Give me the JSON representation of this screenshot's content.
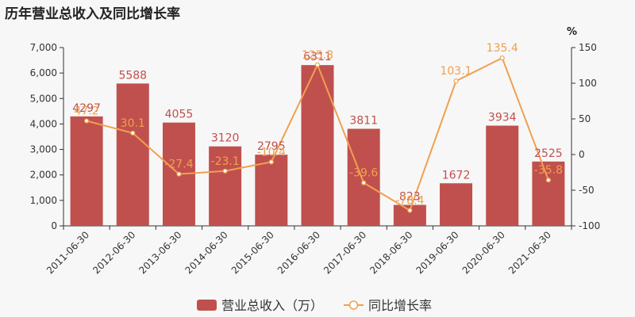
{
  "title": "历年营业总收入及同比增长率",
  "chart_data": {
    "type": "bar",
    "categories": [
      "2011-06-30",
      "2012-06-30",
      "2013-06-30",
      "2014-06-30",
      "2015-06-30",
      "2016-06-30",
      "2017-06-30",
      "2018-06-30",
      "2019-06-30",
      "2020-06-30",
      "2021-06-30"
    ],
    "series": [
      {
        "name": "营业总收入（万）",
        "type": "bar",
        "axis": "left",
        "color": "#c0504d",
        "values": [
          4297,
          5588,
          4055,
          3120,
          2795,
          6311,
          3811,
          823,
          1672,
          3934,
          2525
        ]
      },
      {
        "name": "同比增长率",
        "type": "line",
        "axis": "right",
        "color": "#f0a050",
        "values": [
          47.2,
          30.1,
          -27.4,
          -23.1,
          -10.4,
          125.8,
          -39.6,
          -78.4,
          103.1,
          135.4,
          -35.8
        ]
      }
    ],
    "y_left": {
      "min": 0,
      "max": 7000,
      "ticks": [
        0,
        1000,
        2000,
        3000,
        4000,
        5000,
        6000,
        7000
      ],
      "tick_labels": [
        "0",
        "1,000",
        "2,000",
        "3,000",
        "4,000",
        "5,000",
        "6,000",
        "7,000"
      ]
    },
    "y_right": {
      "min": -100,
      "max": 150,
      "ticks": [
        -100,
        -50,
        0,
        50,
        100,
        150
      ],
      "unit": "%"
    },
    "legend_position": "bottom-center",
    "grid": false
  }
}
